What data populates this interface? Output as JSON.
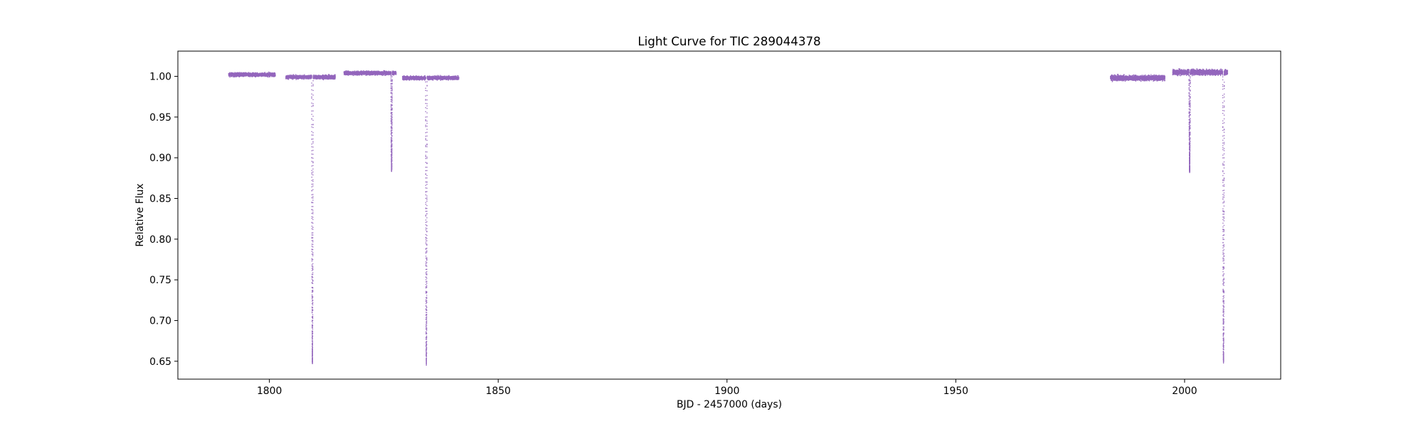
{
  "chart_data": {
    "type": "scatter",
    "title": "Light Curve for TIC 289044378",
    "xlabel": "BJD - 2457000 (days)",
    "ylabel": "Relative Flux",
    "xlim": [
      1780,
      2021
    ],
    "ylim": [
      0.628,
      1.031
    ],
    "x_ticks": [
      1800,
      1850,
      1900,
      1950,
      2000
    ],
    "x_tick_labels": [
      "1800",
      "1850",
      "1900",
      "1950",
      "2000"
    ],
    "y_ticks": [
      0.65,
      0.7,
      0.75,
      0.8,
      0.85,
      0.9,
      0.95,
      1.0
    ],
    "y_tick_labels": [
      "0.65",
      "0.70",
      "0.75",
      "0.80",
      "0.85",
      "0.90",
      "0.95",
      "1.00"
    ],
    "grid": false,
    "marker_color": "#9467bd",
    "segments": [
      {
        "x_start": 1791.0,
        "x_end": 1801.2,
        "baseline": 1.002,
        "noise": 0.0022
      },
      {
        "x_start": 1803.5,
        "x_end": 1814.3,
        "baseline": 0.999,
        "noise": 0.0022
      },
      {
        "x_start": 1816.2,
        "x_end": 1827.6,
        "baseline": 1.004,
        "noise": 0.0022
      },
      {
        "x_start": 1829.0,
        "x_end": 1841.3,
        "baseline": 0.998,
        "noise": 0.0022
      },
      {
        "x_start": 1983.7,
        "x_end": 1995.6,
        "baseline": 0.998,
        "noise": 0.003
      },
      {
        "x_start": 1997.3,
        "x_end": 2009.3,
        "baseline": 1.005,
        "noise": 0.0032
      }
    ],
    "eclipses": [
      {
        "center": 1809.3,
        "min_flux": 0.649,
        "kind": "primary"
      },
      {
        "center": 1826.6,
        "min_flux": 0.885,
        "kind": "secondary"
      },
      {
        "center": 1834.2,
        "min_flux": 0.647,
        "kind": "primary"
      },
      {
        "center": 2001.0,
        "min_flux": 0.884,
        "kind": "secondary"
      },
      {
        "center": 2008.4,
        "min_flux": 0.651,
        "kind": "primary"
      }
    ]
  }
}
